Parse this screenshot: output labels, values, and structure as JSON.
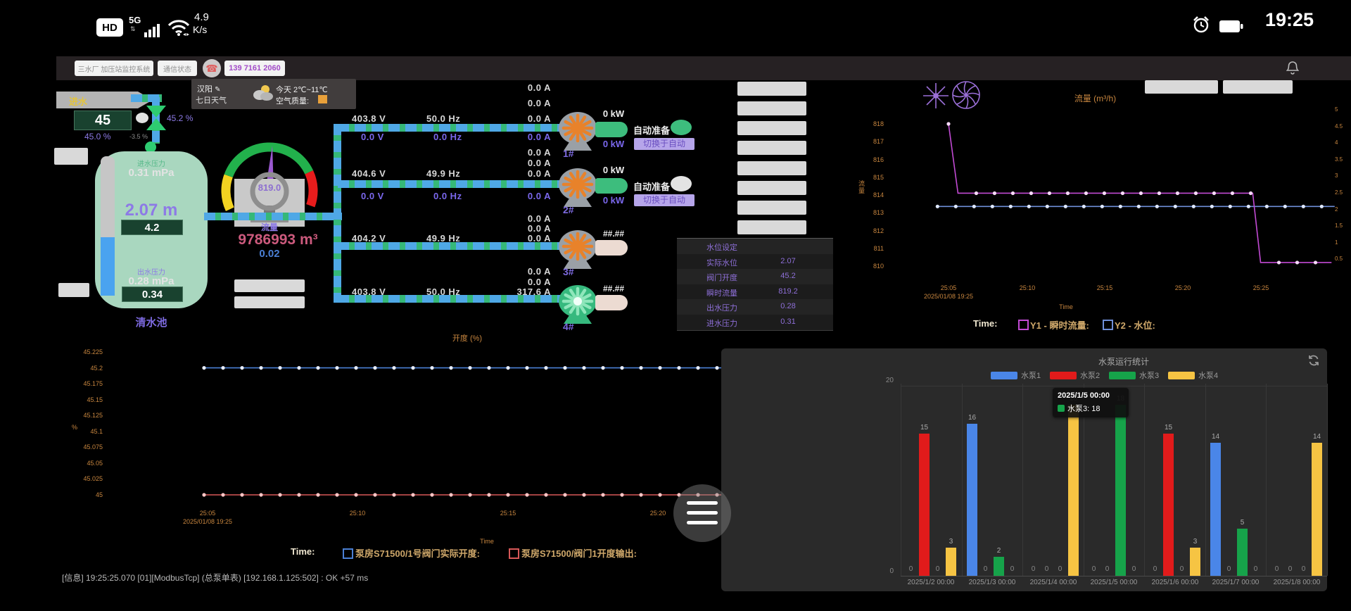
{
  "status_bar": {
    "hd_badge": "HD",
    "network": "5G",
    "speed": "4.9",
    "speed_unit": "K/s",
    "time": "19:25"
  },
  "toolbar": {
    "system_button": "三水厂 加压站监控系统",
    "comm_status_button": "通信状态",
    "phone_number": "139 7161 2060"
  },
  "weather": {
    "city": "汉阳",
    "forecast_link": "七日天气",
    "today_temp": "今天 2℃~11℃",
    "aqi_label": "空气质量:",
    "aqi_color": "#e8a03a"
  },
  "inlet": {
    "pipe_label": "进水",
    "value_box": "45",
    "percent_below": "45.0 %",
    "valve_percent": "45.2 %",
    "deviation": "-3.5 %"
  },
  "tank": {
    "name": "清水池",
    "inlet_pressure_label": "进水压力",
    "inlet_pressure": "0.31 mPa",
    "level": "2.07 m",
    "setpoint_box": "4.2",
    "outlet_pressure_label": "出水压力",
    "outlet_pressure": "0.28 mPa",
    "outlet_box": "0.34"
  },
  "gauge": {
    "value": "819.0",
    "label": "流量",
    "total_flow": "9786993 m³",
    "aux_value": "0.02"
  },
  "pumps": [
    {
      "id": "1#",
      "power_top": "0 kW",
      "power_bottom": "0 kW",
      "status_label": "自动准备",
      "status_on": true,
      "switch_button": "切换于自动",
      "voltage": "403.8 V",
      "frequency": "50.0 Hz",
      "currents": [
        "0.0 A",
        "0.0 A",
        "0.0 A"
      ],
      "vfd_output": {
        "voltage": "0.0 V",
        "frequency": "0.0 Hz",
        "current": "0.0 A"
      },
      "running": false
    },
    {
      "id": "2#",
      "power_top": "0 kW",
      "power_bottom": "0 kW",
      "status_label": "自动准备",
      "status_on": false,
      "switch_button": "切换于自动",
      "voltage": "404.6 V",
      "frequency": "49.9 Hz",
      "currents": [
        "0.0 A",
        "0.0 A",
        "0.0 A"
      ],
      "vfd_output": {
        "voltage": "0.0 V",
        "frequency": "0.0 Hz",
        "current": "0.0 A"
      },
      "running": false
    },
    {
      "id": "3#",
      "reading": "##.##",
      "voltage": "404.2 V",
      "frequency": "49.9 Hz",
      "currents": [
        "0.0 A",
        "0.0 A",
        "0.0 A"
      ],
      "running": false
    },
    {
      "id": "4#",
      "reading": "##.##",
      "voltage": "403.8 V",
      "frequency": "50.0 Hz",
      "currents": [
        "0.0 A",
        "0.0 A",
        "317.6 A"
      ],
      "running": true
    }
  ],
  "info_table": {
    "rows": [
      {
        "label": "水位设定",
        "value": ""
      },
      {
        "label": "实际水位",
        "value": "2.07"
      },
      {
        "label": "阀门开度",
        "value": "45.2"
      },
      {
        "label": "瞬时流量",
        "value": "819.2"
      },
      {
        "label": "出水压力",
        "value": "0.28"
      },
      {
        "label": "进水压力",
        "value": "0.31"
      }
    ]
  },
  "log_line": "[信息] 19:25:25.070 [01][ModbusTcp] (总泵单表) [192.168.1.125:502] : OK +57 ms",
  "chart_data": [
    {
      "id": "flow",
      "type": "line",
      "title": "流量 (m³/h)",
      "y_left": {
        "axis_label": "流量",
        "ticks": [
          "818",
          "817",
          "816",
          "815",
          "814",
          "813",
          "812",
          "811",
          "810"
        ]
      },
      "y_right": {
        "ticks": [
          "5",
          "4.5",
          "4",
          "3.5",
          "3",
          "2.5",
          "2",
          "1.5",
          "1",
          "0.5"
        ]
      },
      "x_ticks": [
        "25:05",
        "25:10",
        "25:15",
        "25:20",
        "25:25"
      ],
      "x_start_date": "2025/01/08 19:25",
      "xlabel": "Time",
      "legend_prefix": "Time:",
      "legend": [
        {
          "label": "Y1 - 瞬时流量:",
          "color": "#c24ad4"
        },
        {
          "label": "Y2 - 水位:",
          "color": "#6f8fd8"
        }
      ],
      "series": [
        {
          "name": "瞬时流量",
          "axis": "left",
          "color": "#c24ad4",
          "points": [
            [
              5,
              818
            ],
            [
              5.6,
              814.1
            ],
            [
              24.3,
              814.1
            ],
            [
              24.8,
              810.2
            ],
            [
              29.3,
              810.2
            ]
          ]
        },
        {
          "name": "水位",
          "axis": "right",
          "color": "#6f8fd8",
          "points": [
            [
              4.3,
              2.07
            ],
            [
              29.5,
              2.07
            ]
          ]
        }
      ]
    },
    {
      "id": "opening",
      "type": "line",
      "title": "开度 (%)",
      "ylabel": "%",
      "y_ticks": [
        "45.225",
        "45.2",
        "45.175",
        "45.15",
        "45.125",
        "45.1",
        "45.075",
        "45.05",
        "45.025",
        "45"
      ],
      "x_ticks": [
        "25:05",
        "25:10",
        "25:15",
        "25:20",
        "25:25"
      ],
      "x_start_date": "2025/01/08 19:25",
      "xlabel": "Time",
      "legend_prefix": "Time:",
      "legend": [
        {
          "label": "泵房S71500/1号阀门实际开度:",
          "color": "#4a7fd4"
        },
        {
          "label": "泵房S71500/阀门1开度输出:",
          "color": "#d85858"
        }
      ],
      "series": [
        {
          "name": "泵房S71500/1号阀门实际开度",
          "color": "#4a7fd4",
          "value": 45.2
        },
        {
          "name": "泵房S71500/阀门1开度输出",
          "color": "#d85858",
          "value": 45.0
        }
      ]
    },
    {
      "id": "pump_stats",
      "type": "bar",
      "title": "水泵运行统计",
      "categories": [
        "2025/1/2 00:00",
        "2025/1/3 00:00",
        "2025/1/4 00:00",
        "2025/1/5 00:00",
        "2025/1/6 00:00",
        "2025/1/7 00:00",
        "2025/1/8 00:00"
      ],
      "series": [
        {
          "name": "水泵1",
          "color": "#4a86e8",
          "values": [
            0,
            16,
            0,
            0,
            0,
            14,
            0
          ]
        },
        {
          "name": "水泵2",
          "color": "#e11b1b",
          "values": [
            15,
            0,
            0,
            0,
            15,
            0,
            0
          ]
        },
        {
          "name": "水泵3",
          "color": "#16a34a",
          "values": [
            0,
            2,
            0,
            18,
            0,
            5,
            0
          ]
        },
        {
          "name": "水泵4",
          "color": "#f6c443",
          "values": [
            3,
            0,
            18,
            0,
            3,
            0,
            14
          ]
        }
      ],
      "ylim": [
        0,
        20
      ],
      "y_ticks": [
        "0",
        "20"
      ],
      "tooltip": {
        "title": "2025/1/5 00:00",
        "series_name": "水泵3",
        "value": "18",
        "color": "#16a34a"
      }
    }
  ]
}
